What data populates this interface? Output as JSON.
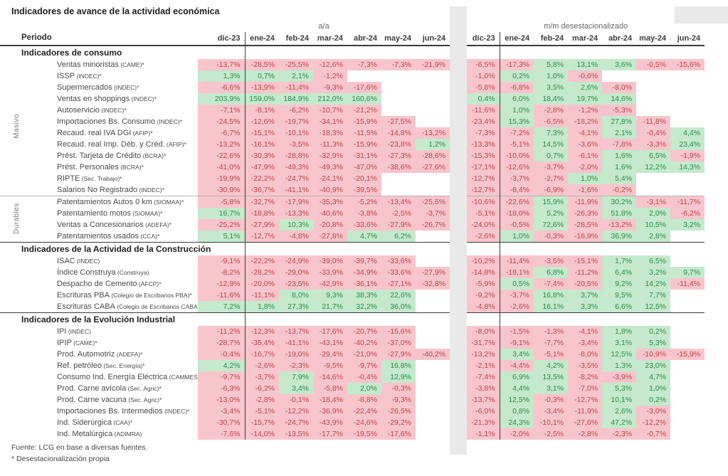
{
  "title": "Indicadores de avance de la actividad económica",
  "header": {
    "period_label": "Periodo",
    "group_aa": "a/a",
    "group_mm": "m/m desestacionalizado",
    "months": [
      "dic-23",
      "ene-24",
      "feb-24",
      "mar-24",
      "abr-24",
      "may-24",
      "jun-24"
    ]
  },
  "colors": {
    "negative_bg": "#f8c5cc",
    "negative_text": "#c0434a",
    "positive_bg": "#c4e9cc",
    "positive_text": "#2f8a4b",
    "band_color": "#e9e9e9"
  },
  "sections": [
    {
      "title": "Indicadores de consumo",
      "groups": [
        {
          "label": "Masivo",
          "rows": [
            {
              "name": "Ventas minoristas",
              "source": "(CAME)*",
              "aa": [
                "-13,7%",
                "-28,5%",
                "-25,5%",
                "-12,6%",
                "-7,3%",
                "-7,3%",
                "-21,9%"
              ],
              "mm": [
                "-6,5%",
                "-17,3%",
                "5,8%",
                "13,1%",
                "3,6%",
                "-0,5%",
                "-15,6%"
              ]
            },
            {
              "name": "ISSP",
              "source": "(INDEC)*",
              "aa": [
                "1,3%",
                "0,7%",
                "2,1%",
                "-1,2%",
                "",
                "",
                ""
              ],
              "mm": [
                "-1,0%",
                "0,2%",
                "1,0%",
                "-0,6%",
                "",
                "",
                ""
              ]
            },
            {
              "name": "Supermercados",
              "source": "(INDEC)*",
              "aa": [
                "-6,6%",
                "-13,9%",
                "-11,4%",
                "-9,3%",
                "-17,6%",
                "",
                ""
              ],
              "mm": [
                "-5,8%",
                "-6,8%",
                "3,5%",
                "2,6%",
                "-8,0%",
                "",
                ""
              ]
            },
            {
              "name": "Ventas en shoppings",
              "source": "(INDEC)*",
              "aa": [
                "203,9%",
                "159,0%",
                "184,9%",
                "212,0%",
                "160,6%",
                "",
                ""
              ],
              "mm": [
                "0,4%",
                "6,0%",
                "18,4%",
                "19,7%",
                "14,6%",
                "",
                ""
              ]
            },
            {
              "name": "Autoservicio",
              "source": "(INDEC)*",
              "aa": [
                "-7,1%",
                "-8,1%",
                "-6,2%",
                "-10,7%",
                "-21,2%",
                "",
                ""
              ],
              "mm": [
                "-11,6%",
                "1,0%",
                "-2,8%",
                "-1,2%",
                "-5,3%",
                "",
                ""
              ]
            },
            {
              "name": "Importaciones Bs. Consumo",
              "source": "(INDEC)*",
              "aa": [
                "-24,5%",
                "-12,6%",
                "-19,7%",
                "-34,1%",
                "-15,9%",
                "-27,5%",
                ""
              ],
              "mm": [
                "-23,4%",
                "15,3%",
                "-6,5%",
                "-18,2%",
                "27,8%",
                "-11,8%",
                ""
              ]
            },
            {
              "name": "Recaud. real IVA DGI",
              "source": "(AFIP)*",
              "aa": [
                "-6,7%",
                "-15,1%",
                "-10,1%",
                "-18,3%",
                "-11,5%",
                "-14,8%",
                "-13,2%"
              ],
              "mm": [
                "-7,3%",
                "-7,2%",
                "7,3%",
                "-4,1%",
                "2,1%",
                "-0,4%",
                "4,4%"
              ]
            },
            {
              "name": "Recaud. real Imp. Déb. y Créd.",
              "source": "(AFIP)*",
              "aa": [
                "-13,2%",
                "-16,1%",
                "-3,5%",
                "-11,3%",
                "-15,9%",
                "-23,8%",
                "1,2%"
              ],
              "mm": [
                "-13,3%",
                "-5,1%",
                "14,5%",
                "-3,6%",
                "-7,8%",
                "-3,3%",
                "23,4%"
              ]
            },
            {
              "name": "Prést. Tarjeta de Crédito",
              "source": "(BCRA)*",
              "aa": [
                "-22,6%",
                "-30,3%",
                "-28,8%",
                "-32,9%",
                "-31,1%",
                "-27,3%",
                "-28,6%"
              ],
              "mm": [
                "-15,3%",
                "-10,0%",
                "0,7%",
                "-6,1%",
                "1,6%",
                "6,5%",
                "-1,9%"
              ]
            },
            {
              "name": "Prést. Personales",
              "source": "(BCRA)*",
              "aa": [
                "-41,0%",
                "-47,9%",
                "-49,3%",
                "-49,3%",
                "-47,0%",
                "-38,6%",
                "-27,6%"
              ],
              "mm": [
                "-17,1%",
                "-12,6%",
                "-3,7%",
                "-2,0%",
                "1,6%",
                "12,2%",
                "14,3%"
              ]
            },
            {
              "name": "RIPTE",
              "source": "(Sec. Trabajo)*",
              "aa": [
                "-19,9%",
                "-22,2%",
                "-24,7%",
                "-24,1%",
                "-20,1%",
                "",
                ""
              ],
              "mm": [
                "-12,7%",
                "-3,7%",
                "-2,7%",
                "1,0%",
                "5,4%",
                "",
                ""
              ]
            },
            {
              "name": "Salarios No Registrado",
              "source": "(INDEC)*",
              "aa": [
                "-30,9%",
                "-36,7%",
                "-41,1%",
                "-40,9%",
                "-39,5%",
                "",
                ""
              ],
              "mm": [
                "-12,7%",
                "-8,4%",
                "-6,9%",
                "-1,6%",
                "-0,2%",
                "",
                ""
              ]
            }
          ]
        },
        {
          "label": "Durables",
          "rows": [
            {
              "name": "Patentamientos Autos 0 km",
              "source": "(SIOMAA)*",
              "aa": [
                "-5,8%",
                "-32,7%",
                "-17,9%",
                "-35,3%",
                "-5,2%",
                "-13,4%",
                "-25,5%"
              ],
              "mm": [
                "-10,6%",
                "-22,6%",
                "15,9%",
                "-11,9%",
                "30,2%",
                "-3,1%",
                "-11,7%"
              ]
            },
            {
              "name": "Patentamiento motos",
              "source": "(SIOMAA)*",
              "aa": [
                "16,7%",
                "-18,8%",
                "-13,3%",
                "-40,6%",
                "-3,8%",
                "-2,5%",
                "-3,7%"
              ],
              "mm": [
                "-5,1%",
                "-18,0%",
                "5,2%",
                "-26,3%",
                "51,8%",
                "2,0%",
                "-6,2%"
              ]
            },
            {
              "name": "Ventas a Concesionarios",
              "source": "(ADEFA)*",
              "aa": [
                "-25,2%",
                "-27,9%",
                "10,3%",
                "-20,8%",
                "-33,6%",
                "-27,9%",
                "-26,7%"
              ],
              "mm": [
                "-24,0%",
                "-0,5%",
                "72,6%",
                "-28,5%",
                "-13,2%",
                "10,5%",
                "3,2%"
              ]
            },
            {
              "name": "Patentamientos usados",
              "source": "(CCA)*",
              "aa": [
                "5,1%",
                "-12,7%",
                "-4,8%",
                "-27,8%",
                "4,7%",
                "6,2%",
                ""
              ],
              "mm": [
                "-2,6%",
                "1,0%",
                "-0,3%",
                "-16,9%",
                "36,9%",
                "2,8%",
                ""
              ]
            }
          ]
        }
      ]
    },
    {
      "title": "Indicadores de la Actividad de la Construcción",
      "groups": [
        {
          "label": "",
          "rows": [
            {
              "name": "ISAC",
              "source": "(INDEC)",
              "aa": [
                "-9,1%",
                "-22,2%",
                "-24,9%",
                "-39,0%",
                "-39,7%",
                "-33,6%",
                ""
              ],
              "mm": [
                "-10,2%",
                "-11,4%",
                "-3,5%",
                "-15,1%",
                "1,7%",
                "6,5%",
                ""
              ]
            },
            {
              "name": "Índice Construya",
              "source": "(Construya)",
              "aa": [
                "-8,2%",
                "-28,2%",
                "-29,0%",
                "-33,9%",
                "-34,9%",
                "-33,6%",
                "-27,9%"
              ],
              "mm": [
                "-14,8%",
                "-18,1%",
                "6,8%",
                "-11,2%",
                "6,4%",
                "3,2%",
                "9,7%"
              ]
            },
            {
              "name": "Despacho de Cemento",
              "source": "(AFCP)*",
              "aa": [
                "-12,9%",
                "-20,0%",
                "-23,5%",
                "-42,9%",
                "-36,1%",
                "-27,1%",
                "-32,8%"
              ],
              "mm": [
                "-5,9%",
                "0,5%",
                "-7,4%",
                "-20,5%",
                "9,2%",
                "14,2%",
                "-11,4%"
              ]
            },
            {
              "name": "Escrituras PBA",
              "source": "(Colegio de Escribanos PBA)*",
              "aa": [
                "-11,6%",
                "-11,1%",
                "8,0%",
                "9,3%",
                "38,3%",
                "22,6%",
                ""
              ],
              "mm": [
                "-9,2%",
                "-3,7%",
                "16,8%",
                "3,7%",
                "9,5%",
                "7,7%",
                ""
              ]
            },
            {
              "name": "Escrituras CABA",
              "source": "(Colegio de Escribanos CABA)*",
              "aa": [
                "7,2%",
                "1,8%",
                "27,3%",
                "21,7%",
                "32,2%",
                "36,0%",
                ""
              ],
              "mm": [
                "-4,8%",
                "-2,6%",
                "16,1%",
                "3,3%",
                "6,6%",
                "12,5%",
                ""
              ]
            }
          ]
        }
      ]
    },
    {
      "title": "Indicadores de la Evolución Industrial",
      "groups": [
        {
          "label": "",
          "rows": [
            {
              "name": "IPI",
              "source": "(INDEC)",
              "aa": [
                "-11,2%",
                "-12,3%",
                "-13,7%",
                "-17,6%",
                "-20,7%",
                "-15,6%",
                ""
              ],
              "mm": [
                "-8,0%",
                "-1,5%",
                "-1,3%",
                "-4,1%",
                "1,8%",
                "0,2%",
                ""
              ]
            },
            {
              "name": "IPIP",
              "source": "(CAME)*",
              "aa": [
                "-28,7%",
                "-35,4%",
                "-41,1%",
                "-43,1%",
                "-40,2%",
                "-37,0%",
                ""
              ],
              "mm": [
                "-31,7%",
                "-9,1%",
                "-7,7%",
                "-3,4%",
                "3,1%",
                "5,3%",
                ""
              ]
            },
            {
              "name": "Prod. Automotriz",
              "source": "(ADEFA)*",
              "aa": [
                "-0,4%",
                "-16,7%",
                "-19,0%",
                "-29,4%",
                "-21,0%",
                "-27,9%",
                "-40,2%"
              ],
              "mm": [
                "-13,2%",
                "3,4%",
                "-5,1%",
                "-8,0%",
                "12,5%",
                "-10,9%",
                "-15,9%"
              ]
            },
            {
              "name": "Ref. petróleo",
              "source": "(Sec. Energía)*",
              "aa": [
                "4,2%",
                "-2,6%",
                "-2,3%",
                "-9,5%",
                "-9,7%",
                "16,8%",
                ""
              ],
              "mm": [
                "-2,1%",
                "-4,4%",
                "4,2%",
                "-3,5%",
                "1,3%",
                "23,0%",
                ""
              ]
            },
            {
              "name": "Consumo Ind. Energía Eléctrica",
              "source": "(CAMMESA)*",
              "aa": [
                "-9,7%",
                "-3,7%",
                "7,9%",
                "-14,6%",
                "-0,4%",
                "12,9%",
                ""
              ],
              "mm": [
                "-7,4%",
                "6,9%",
                "13,5%",
                "-8,2%",
                "-3,9%",
                "4,7%",
                ""
              ]
            },
            {
              "name": "Prod. Carne avícola",
              "source": "(Sec. Agric)*",
              "aa": [
                "-6,3%",
                "-6,2%",
                "3,4%",
                "-5,8%",
                "2,0%",
                "-0,3%",
                ""
              ],
              "mm": [
                "-3,8%",
                "4,4%",
                "3,1%",
                "-7,0%",
                "5,3%",
                "1,0%",
                ""
              ]
            },
            {
              "name": "Prod. Carne vacuna",
              "source": "(Sec. Agric)*",
              "aa": [
                "-13,0%",
                "-2,8%",
                "-0,1%",
                "-18,4%",
                "-8,8%",
                "-9,3%",
                ""
              ],
              "mm": [
                "-13,7%",
                "12,5%",
                "-0,3%",
                "-12,7%",
                "10,1%",
                "0,2%",
                ""
              ]
            },
            {
              "name": "Importaciones Bs. Intermedios",
              "source": "(INDEC)*",
              "aa": [
                "-3,4%",
                "-5,1%",
                "-12,2%",
                "-36,9%",
                "-22,4%",
                "-26,5%",
                ""
              ],
              "mm": [
                "-6,0%",
                "0,8%",
                "-3,4%",
                "-11,9%",
                "2,6%",
                "-3,0%",
                ""
              ]
            },
            {
              "name": "Ind. Siderúrgica",
              "source": "(CAA)*",
              "aa": [
                "-30,7%",
                "-15,7%",
                "-24,7%",
                "-43,9%",
                "-24,6%",
                "-29,2%",
                ""
              ],
              "mm": [
                "-21,3%",
                "24,3%",
                "-10,1%",
                "-27,6%",
                "47,2%",
                "-12,2%",
                ""
              ]
            },
            {
              "name": "Ind. Metalúrgica",
              "source": "(ADIMRA)",
              "aa": [
                "-7,6%",
                "-14,0%",
                "-13,5%",
                "-17,7%",
                "-19,5%",
                "-17,6%",
                ""
              ],
              "mm": [
                "-1,1%",
                "-2,0%",
                "-2,5%",
                "-2,8%",
                "-2,3%",
                "-0,7%",
                ""
              ]
            }
          ]
        }
      ]
    }
  ],
  "footer": {
    "line1": "Fuente: LCG en base a diversas fuentes.",
    "line2": "* Desestacionalización propia"
  }
}
